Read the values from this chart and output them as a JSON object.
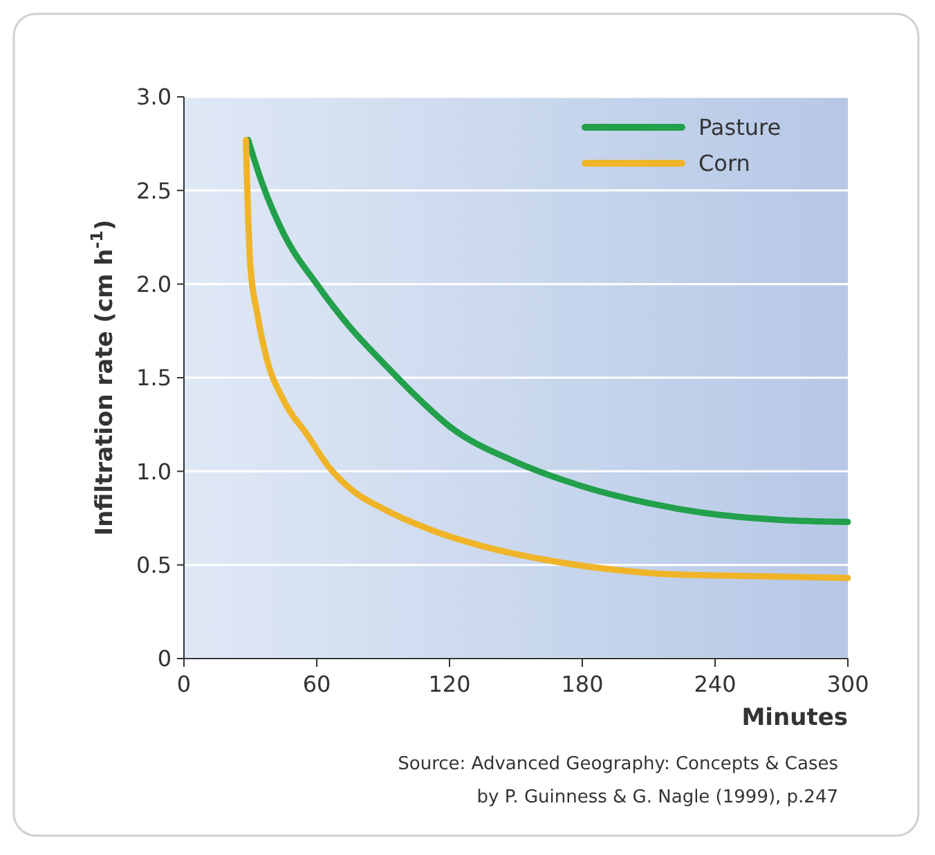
{
  "chart_data": {
    "type": "line",
    "ylabel": "Infiltration rate (cm h$^{-1}$)",
    "xlabel": "Minutes",
    "xlim": [
      0,
      300
    ],
    "xticks": [
      0,
      60,
      120,
      180,
      240,
      300
    ],
    "ylim": [
      0,
      3
    ],
    "yticks": [
      0,
      {
        "value": 0.5,
        "label": "0.5"
      },
      {
        "value": 1,
        "label": "1.0"
      },
      {
        "value": 1.5,
        "label": "1.5"
      },
      {
        "value": 2,
        "label": "2.0"
      },
      {
        "value": 2.5,
        "label": "2.5"
      },
      {
        "value": 3,
        "label": "3.0"
      }
    ],
    "grid": "y",
    "legend": "top right",
    "line_style": "solid",
    "marker": "none",
    "series": [
      {
        "name": "Pasture",
        "color": "#22a04b",
        "x": [
          29,
          35,
          45,
          60,
          75,
          90,
          105,
          120,
          150,
          180,
          210,
          240,
          270,
          300
        ],
        "values": [
          2.77,
          2.55,
          2.27,
          2.0,
          1.77,
          1.58,
          1.4,
          1.24,
          1.05,
          0.92,
          0.83,
          0.77,
          0.74,
          0.73
        ]
      },
      {
        "name": "Corn",
        "color": "#f0b429",
        "x": [
          28,
          28.5,
          30,
          33,
          37,
          45,
          56,
          65,
          77,
          90,
          111,
          135,
          162,
          190,
          220,
          260,
          300
        ],
        "values": [
          2.77,
          2.55,
          2.1,
          1.85,
          1.62,
          1.38,
          1.19,
          1.03,
          0.89,
          0.8,
          0.69,
          0.6,
          0.53,
          0.48,
          0.45,
          0.44,
          0.43
        ]
      }
    ],
    "annotations": [
      "Source: Advanced Geography: Concepts & Cases",
      "by P. Guinness & G. Nagle (1999), p.247"
    ]
  }
}
